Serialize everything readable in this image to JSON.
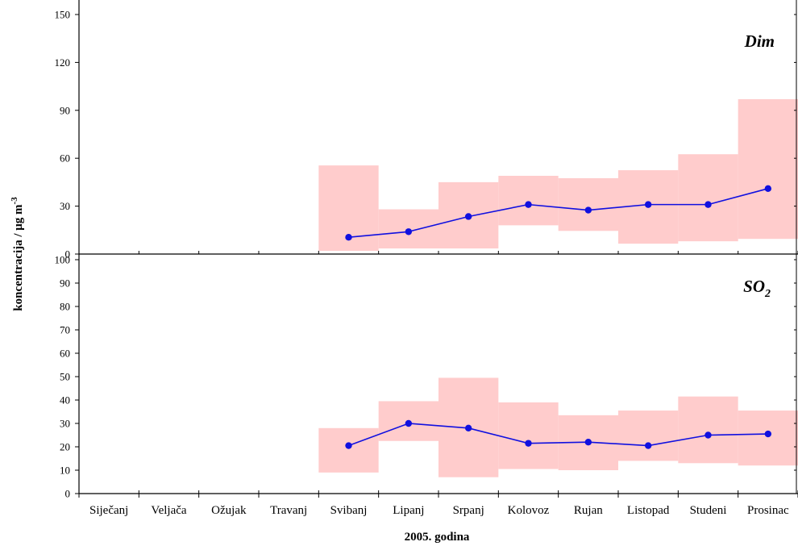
{
  "chart_data": {
    "type": "line",
    "ylabel": "koncentracija / μg m",
    "ylabel_sup": "-3",
    "xlabel": "2005. godina",
    "categories": [
      "Siječanj",
      "Veljača",
      "Ožujak",
      "Travanj",
      "Svibanj",
      "Lipanj",
      "Srpanj",
      "Kolovoz",
      "Rujan",
      "Listopad",
      "Studeni",
      "Prosinac"
    ],
    "band_color": "#ffcccc",
    "line_color": "#1010e0",
    "panels": [
      {
        "title": "Dim",
        "title_sub": "",
        "ylim": [
          0,
          150
        ],
        "yticks": [
          0,
          30,
          60,
          90,
          120,
          150
        ],
        "series": [
          {
            "values": [
              null,
              null,
              null,
              null,
              10.5,
              14,
              23.5,
              31,
              27.5,
              31,
              31,
              41
            ],
            "range_low": [
              null,
              null,
              null,
              null,
              2,
              3.5,
              3.5,
              18,
              14.5,
              6.5,
              8,
              9.5
            ],
            "range_high": [
              null,
              null,
              null,
              null,
              55.5,
              28,
              45,
              49,
              47.5,
              52.5,
              62.5,
              97
            ]
          }
        ]
      },
      {
        "title": "SO",
        "title_sub": "2",
        "ylim": [
          0,
          100
        ],
        "yticks": [
          0,
          10,
          20,
          30,
          40,
          50,
          60,
          70,
          80,
          90,
          100
        ],
        "series": [
          {
            "values": [
              null,
              null,
              null,
              null,
              20.5,
              30,
              28,
              21.5,
              22,
              20.5,
              25,
              25.5
            ],
            "range_low": [
              null,
              null,
              null,
              null,
              9,
              22.5,
              7,
              10.5,
              10,
              14,
              13,
              12
            ],
            "range_high": [
              null,
              null,
              null,
              null,
              28,
              39.5,
              49.5,
              39,
              33.5,
              35.5,
              41.5,
              35.5
            ]
          }
        ]
      }
    ]
  }
}
